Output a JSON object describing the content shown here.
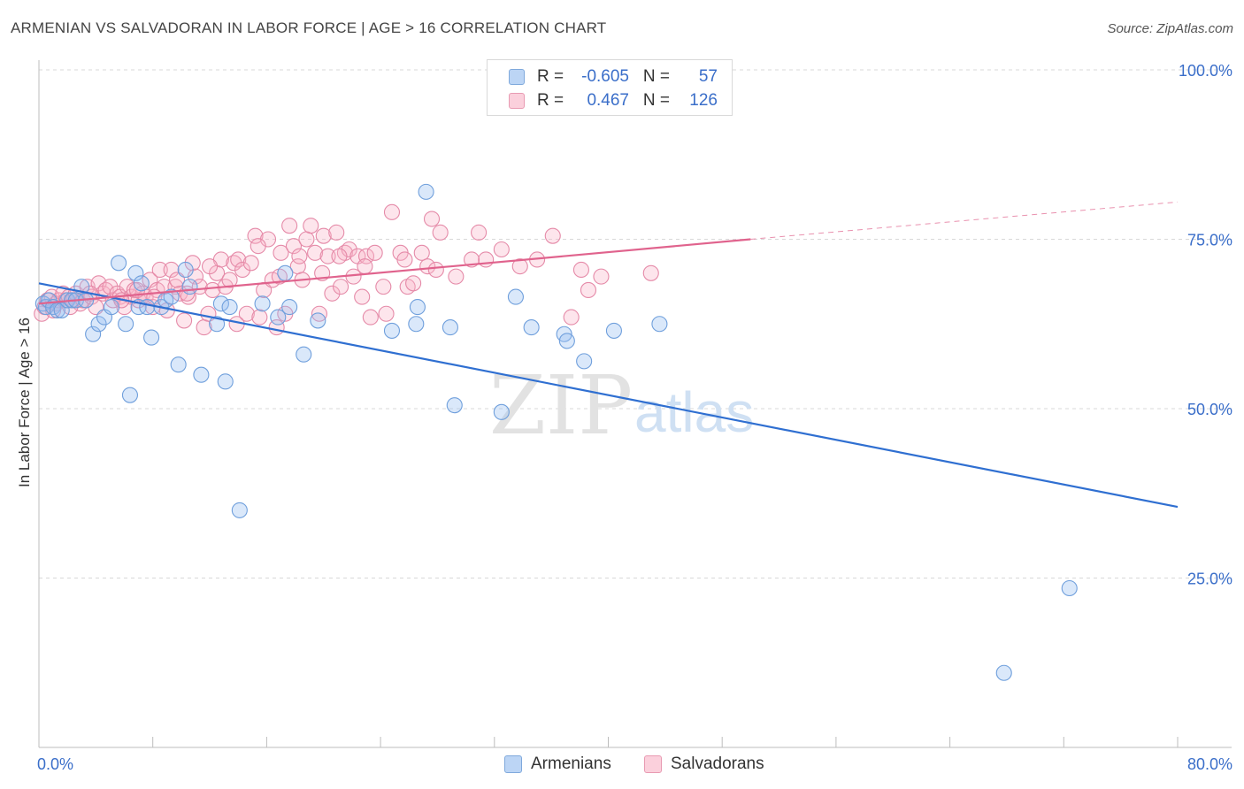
{
  "title": "ARMENIAN VS SALVADORAN IN LABOR FORCE | AGE > 16 CORRELATION CHART",
  "source": "Source: ZipAtlas.com",
  "watermark": {
    "zip": "ZIP",
    "atlas": "atlas"
  },
  "legend_top": [
    {
      "r_label": "R =",
      "r_value": "-0.605",
      "n_label": "N =",
      "n_value": "57",
      "color": "#a8c8f0",
      "border": "#6b9fd8"
    },
    {
      "r_label": "R =",
      "r_value": "0.467",
      "n_label": "N =",
      "n_value": "126",
      "color": "#f7bfd0",
      "border": "#e88aa8"
    }
  ],
  "legend_bottom": [
    {
      "label": "Armenians",
      "color": "#bcd5f5",
      "border": "#7fa9dc"
    },
    {
      "label": "Salvadorans",
      "color": "#fbd0dc",
      "border": "#e89ab2"
    }
  ],
  "colors": {
    "armenian_fill": "rgba(150,190,240,0.35)",
    "armenian_stroke": "#6f9fdc",
    "armenian_line": "#2f6fd1",
    "salvadoran_fill": "rgba(248,180,200,0.35)",
    "salvadoran_stroke": "#e58aa8",
    "salvadoran_line": "#e0638d",
    "tick_label": "#3a6ec9",
    "grid": "#d8d8d8"
  },
  "chart_data": {
    "type": "scatter",
    "title": "ARMENIAN VS SALVADORAN IN LABOR FORCE | AGE > 16 CORRELATION CHART",
    "xlabel": "",
    "ylabel": "In Labor Force | Age > 16",
    "xlim": [
      0,
      80
    ],
    "ylim": [
      0,
      104
    ],
    "x_tick_labels": [
      {
        "value": 0,
        "label": "0.0%"
      },
      {
        "value": 80,
        "label": "80.0%"
      }
    ],
    "y_tick_labels": [
      {
        "value": 100,
        "label": "100.0%"
      },
      {
        "value": 75,
        "label": "75.0%"
      },
      {
        "value": 50,
        "label": "50.0%"
      },
      {
        "value": 25,
        "label": "25.0%"
      }
    ],
    "grid": true,
    "legend_position": "top-center",
    "series": [
      {
        "name": "Armenians",
        "r": -0.605,
        "n": 57,
        "trend": {
          "x0": 0,
          "y0": 68.5,
          "x1": 80,
          "y1": 35.5
        },
        "points": [
          [
            0.3,
            65.5
          ],
          [
            0.5,
            65
          ],
          [
            0.7,
            66
          ],
          [
            1.0,
            65
          ],
          [
            1.3,
            64.5
          ],
          [
            1.6,
            64.5
          ],
          [
            2.0,
            66
          ],
          [
            2.3,
            66
          ],
          [
            2.6,
            66
          ],
          [
            3.0,
            68
          ],
          [
            3.3,
            66
          ],
          [
            3.8,
            61
          ],
          [
            4.2,
            62.5
          ],
          [
            4.6,
            63.5
          ],
          [
            5.1,
            65
          ],
          [
            5.6,
            71.5
          ],
          [
            6.1,
            62.5
          ],
          [
            6.4,
            52
          ],
          [
            6.8,
            70
          ],
          [
            7.0,
            65
          ],
          [
            7.2,
            68.5
          ],
          [
            7.6,
            65
          ],
          [
            7.9,
            60.5
          ],
          [
            8.6,
            65
          ],
          [
            8.9,
            66
          ],
          [
            9.3,
            66.5
          ],
          [
            9.8,
            56.5
          ],
          [
            10.3,
            70.5
          ],
          [
            10.6,
            68
          ],
          [
            11.4,
            55
          ],
          [
            12.5,
            62.5
          ],
          [
            12.8,
            65.5
          ],
          [
            13.1,
            54
          ],
          [
            13.4,
            65
          ],
          [
            14.1,
            35
          ],
          [
            15.7,
            65.5
          ],
          [
            16.8,
            63.5
          ],
          [
            17.3,
            70
          ],
          [
            17.6,
            65
          ],
          [
            18.6,
            58
          ],
          [
            19.6,
            63
          ],
          [
            24.8,
            61.5
          ],
          [
            26.5,
            62.5
          ],
          [
            26.6,
            65
          ],
          [
            27.2,
            82
          ],
          [
            28.9,
            62
          ],
          [
            29.2,
            50.5
          ],
          [
            32.5,
            49.5
          ],
          [
            33.5,
            66.5
          ],
          [
            34.6,
            62
          ],
          [
            36.9,
            61
          ],
          [
            37.1,
            60
          ],
          [
            38.3,
            57
          ],
          [
            40.4,
            61.5
          ],
          [
            43.6,
            62.5
          ],
          [
            67.8,
            11
          ],
          [
            72.4,
            23.5
          ]
        ]
      },
      {
        "name": "Salvadorans",
        "r": 0.467,
        "n": 126,
        "trend": {
          "x0": 0,
          "y0": 65.5,
          "x1": 50,
          "y1": 75,
          "dash_x1": 80,
          "dash_y1": 80.5
        },
        "points": [
          [
            0.2,
            64
          ],
          [
            0.4,
            65
          ],
          [
            0.6,
            66
          ],
          [
            0.9,
            66.5
          ],
          [
            1.2,
            65.5
          ],
          [
            1.4,
            66
          ],
          [
            1.7,
            67
          ],
          [
            1.9,
            66
          ],
          [
            2.1,
            66.5
          ],
          [
            2.4,
            66
          ],
          [
            2.6,
            67
          ],
          [
            2.9,
            65.5
          ],
          [
            3.1,
            66
          ],
          [
            3.4,
            68
          ],
          [
            3.7,
            66.5
          ],
          [
            4.0,
            65
          ],
          [
            4.2,
            68.5
          ],
          [
            4.5,
            67
          ],
          [
            4.7,
            67.5
          ],
          [
            5.0,
            68
          ],
          [
            5.2,
            66
          ],
          [
            5.5,
            67
          ],
          [
            5.7,
            66.5
          ],
          [
            6.0,
            65
          ],
          [
            6.2,
            68
          ],
          [
            6.5,
            66.5
          ],
          [
            6.7,
            67.5
          ],
          [
            7.0,
            66
          ],
          [
            7.3,
            67
          ],
          [
            7.5,
            66.5
          ],
          [
            7.8,
            69
          ],
          [
            8.0,
            65
          ],
          [
            8.3,
            67.5
          ],
          [
            8.5,
            70.5
          ],
          [
            8.8,
            68
          ],
          [
            9.0,
            64.5
          ],
          [
            9.3,
            70.5
          ],
          [
            9.6,
            68
          ],
          [
            9.9,
            67
          ],
          [
            10.2,
            63
          ],
          [
            10.5,
            66.5
          ],
          [
            10.8,
            71.5
          ],
          [
            11.0,
            69.5
          ],
          [
            11.3,
            68
          ],
          [
            11.6,
            62
          ],
          [
            11.9,
            64
          ],
          [
            12.2,
            67.5
          ],
          [
            12.5,
            70
          ],
          [
            12.8,
            72
          ],
          [
            13.1,
            68
          ],
          [
            13.4,
            69
          ],
          [
            13.7,
            71.5
          ],
          [
            14.0,
            72
          ],
          [
            14.3,
            70.5
          ],
          [
            14.6,
            64
          ],
          [
            14.9,
            71.5
          ],
          [
            15.2,
            75.5
          ],
          [
            15.5,
            63.5
          ],
          [
            15.8,
            67.5
          ],
          [
            16.1,
            75
          ],
          [
            16.4,
            69
          ],
          [
            16.7,
            62
          ],
          [
            17.0,
            73
          ],
          [
            17.3,
            64
          ],
          [
            17.6,
            77
          ],
          [
            17.9,
            74
          ],
          [
            18.2,
            71
          ],
          [
            18.5,
            69
          ],
          [
            18.8,
            75
          ],
          [
            19.1,
            77
          ],
          [
            19.4,
            73
          ],
          [
            19.7,
            64
          ],
          [
            20.0,
            75.5
          ],
          [
            20.3,
            72.5
          ],
          [
            20.6,
            67
          ],
          [
            20.9,
            76
          ],
          [
            21.2,
            68
          ],
          [
            21.5,
            73
          ],
          [
            21.8,
            73.5
          ],
          [
            22.1,
            69.5
          ],
          [
            22.4,
            72.5
          ],
          [
            22.7,
            66.5
          ],
          [
            23.0,
            72.5
          ],
          [
            23.3,
            63.5
          ],
          [
            23.6,
            73
          ],
          [
            24.2,
            68
          ],
          [
            24.8,
            79
          ],
          [
            25.4,
            73
          ],
          [
            25.9,
            68
          ],
          [
            26.3,
            68.5
          ],
          [
            26.9,
            73
          ],
          [
            27.3,
            71
          ],
          [
            27.6,
            78
          ],
          [
            28.2,
            76
          ],
          [
            29.3,
            69.5
          ],
          [
            30.9,
            76
          ],
          [
            31.4,
            72
          ],
          [
            32.5,
            73.5
          ],
          [
            33.8,
            71
          ],
          [
            36.1,
            75.5
          ],
          [
            37.4,
            63.5
          ],
          [
            38.1,
            70.5
          ],
          [
            38.6,
            67.5
          ],
          [
            39.5,
            69.5
          ],
          [
            43.0,
            70
          ],
          [
            1.0,
            64.5
          ],
          [
            2.2,
            65
          ],
          [
            3.6,
            67
          ],
          [
            5.8,
            66
          ],
          [
            6.9,
            67.5
          ],
          [
            8.1,
            66.5
          ],
          [
            9.7,
            69
          ],
          [
            10.4,
            67
          ],
          [
            12.0,
            71
          ],
          [
            13.9,
            62.5
          ],
          [
            15.4,
            74
          ],
          [
            16.9,
            69.5
          ],
          [
            18.3,
            72.5
          ],
          [
            19.9,
            70
          ],
          [
            21.1,
            72.5
          ],
          [
            22.9,
            71
          ],
          [
            24.4,
            64
          ],
          [
            25.7,
            72
          ],
          [
            27.9,
            70.5
          ],
          [
            30.4,
            72
          ],
          [
            35.0,
            72
          ]
        ]
      }
    ]
  }
}
